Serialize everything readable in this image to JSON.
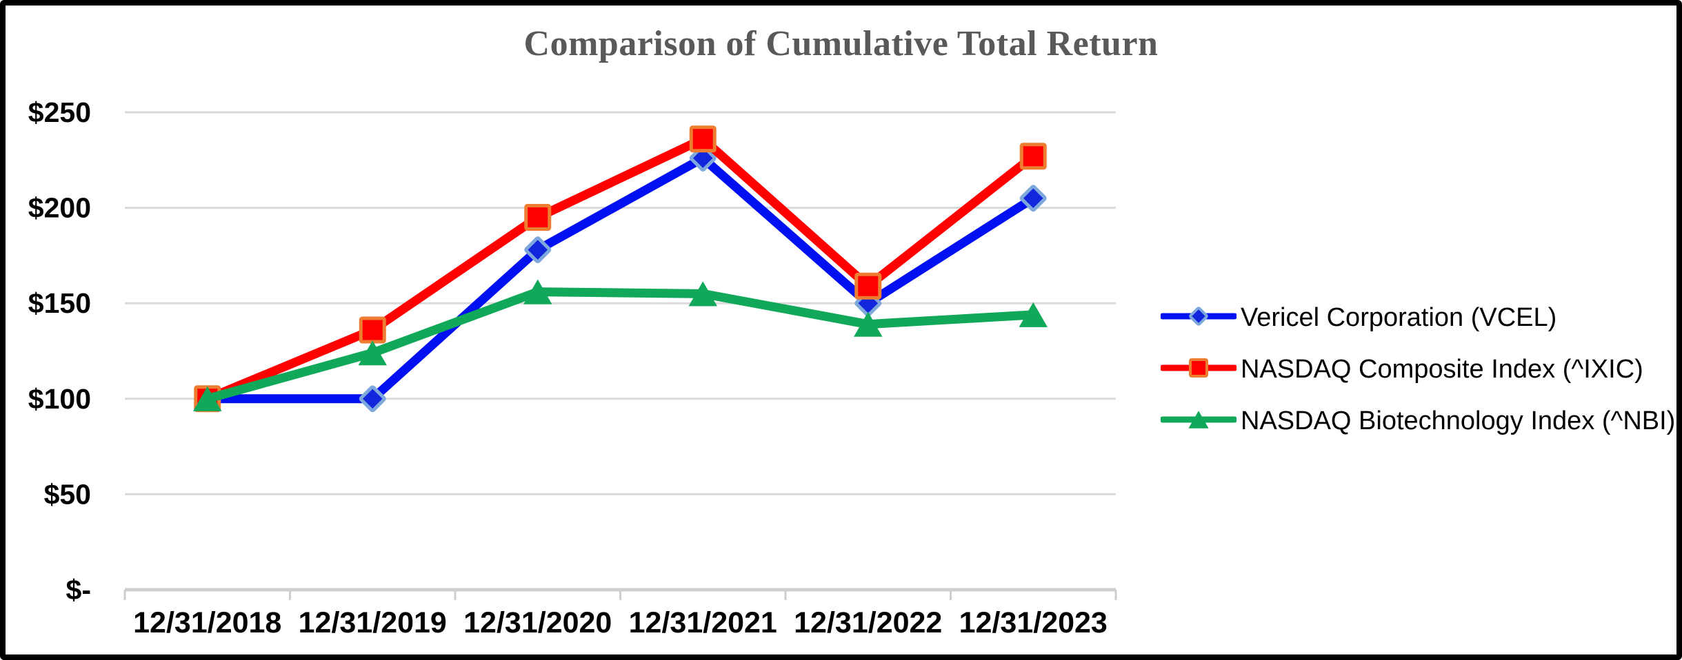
{
  "title": "Comparison of Cumulative Total Return",
  "title_color": "#595959",
  "chart_data": {
    "type": "line",
    "title": "Comparison of Cumulative Total Return",
    "categories": [
      "12/31/2018",
      "12/31/2019",
      "12/31/2020",
      "12/31/2021",
      "12/31/2022",
      "12/31/2023"
    ],
    "series": [
      {
        "name": "Vericel Corporation (VCEL)",
        "marker": "diamond",
        "color": "#0010F0",
        "marker_fill": "#1326DC",
        "marker_stroke": "#7EA8DC",
        "values": [
          100,
          100,
          178,
          226,
          150,
          205
        ]
      },
      {
        "name": "NASDAQ Composite Index (^IXIC)",
        "marker": "square",
        "color": "#FE0000",
        "marker_fill": "#FE0000",
        "marker_stroke": "#ED7D31",
        "values": [
          100,
          136,
          195,
          236,
          159,
          227
        ]
      },
      {
        "name": "NASDAQ Biotechnology Index (^NBI)",
        "marker": "triangle",
        "color": "#11A85A",
        "marker_fill": "#11A85A",
        "marker_stroke": "#11A85A",
        "values": [
          100,
          124,
          156,
          155,
          139,
          144
        ]
      }
    ],
    "y_ticks": [
      {
        "value": 250,
        "label": "$250"
      },
      {
        "value": 200,
        "label": "$200"
      },
      {
        "value": 150,
        "label": "$150"
      },
      {
        "value": 100,
        "label": "$100"
      },
      {
        "value": 50,
        "label": "$50"
      },
      {
        "value": 0,
        "label": "$-"
      }
    ],
    "ylim": [
      0,
      250
    ],
    "grid": "horizontal",
    "grid_color": "#DADADA",
    "axis_color": "#CFCFCF",
    "legend_position": "right"
  }
}
